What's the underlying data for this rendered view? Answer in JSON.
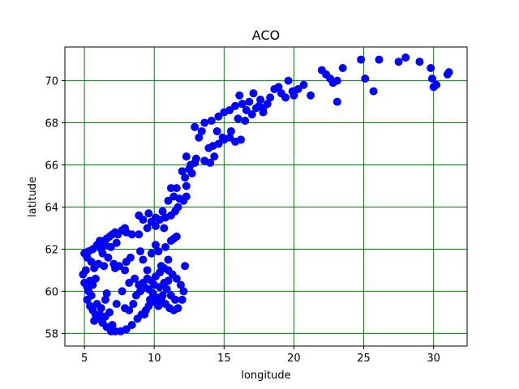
{
  "colors": {
    "grid": "#008000",
    "points": "#0000ff",
    "frame": "#000000",
    "background": "#ffffff"
  },
  "chart_data": {
    "type": "scatter",
    "title": "ACO",
    "xlabel": "longitude",
    "ylabel": "latitude",
    "xlim": [
      3.6,
      32.4
    ],
    "ylim": [
      57.4,
      71.6
    ],
    "xticks": [
      5,
      10,
      15,
      20,
      25,
      30
    ],
    "xtick_labels": [
      "5",
      "10",
      "15",
      "20",
      "25",
      "30"
    ],
    "yticks": [
      58,
      60,
      62,
      64,
      66,
      68,
      70
    ],
    "ytick_labels": [
      "58",
      "60",
      "62",
      "64",
      "66",
      "68",
      "70"
    ],
    "grid": true,
    "points": [
      [
        5.0,
        61.8
      ],
      [
        5.2,
        61.6
      ],
      [
        5.3,
        61.9
      ],
      [
        5.6,
        62.0
      ],
      [
        5.9,
        62.2
      ],
      [
        6.1,
        62.4
      ],
      [
        6.4,
        62.4
      ],
      [
        6.6,
        62.5
      ],
      [
        6.8,
        62.6
      ],
      [
        7.0,
        62.7
      ],
      [
        7.2,
        62.8
      ],
      [
        7.4,
        62.7
      ],
      [
        7.7,
        62.9
      ],
      [
        7.9,
        63.0
      ],
      [
        8.0,
        62.8
      ],
      [
        8.4,
        62.7
      ],
      [
        8.9,
        62.7
      ],
      [
        6.2,
        62.0
      ],
      [
        6.5,
        62.2
      ],
      [
        6.9,
        62.1
      ],
      [
        7.3,
        62.3
      ],
      [
        5.5,
        61.4
      ],
      [
        5.7,
        61.1
      ],
      [
        6.0,
        61.3
      ],
      [
        6.4,
        61.2
      ],
      [
        6.7,
        61.6
      ],
      [
        7.1,
        61.3
      ],
      [
        7.5,
        61.2
      ],
      [
        8.0,
        61.4
      ],
      [
        8.3,
        61.6
      ],
      [
        7.9,
        61.0
      ],
      [
        7.2,
        61.1
      ],
      [
        5.1,
        61.0
      ],
      [
        4.9,
        60.8
      ],
      [
        5.0,
        60.4
      ],
      [
        5.2,
        60.2
      ],
      [
        5.4,
        60.5
      ],
      [
        5.6,
        60.3
      ],
      [
        5.8,
        60.6
      ],
      [
        5.3,
        60.0
      ],
      [
        5.5,
        59.8
      ],
      [
        5.2,
        59.6
      ],
      [
        5.4,
        59.3
      ],
      [
        5.6,
        59.1
      ],
      [
        5.8,
        58.9
      ],
      [
        6.0,
        58.7
      ],
      [
        6.3,
        58.5
      ],
      [
        6.6,
        58.3
      ],
      [
        6.9,
        58.1
      ],
      [
        7.2,
        58.1
      ],
      [
        7.6,
        58.1
      ],
      [
        8.0,
        58.2
      ],
      [
        8.4,
        58.4
      ],
      [
        8.8,
        58.7
      ],
      [
        9.1,
        58.9
      ],
      [
        9.4,
        59.1
      ],
      [
        9.6,
        59.3
      ],
      [
        5.9,
        59.4
      ],
      [
        6.2,
        59.2
      ],
      [
        6.5,
        59.6
      ],
      [
        5.7,
        58.6
      ],
      [
        6.1,
        58.9
      ],
      [
        6.5,
        58.8
      ],
      [
        6.8,
        59.0
      ],
      [
        7.3,
        59.4
      ],
      [
        7.0,
        58.4
      ],
      [
        7.9,
        59.2
      ],
      [
        8.2,
        59.1
      ],
      [
        8.5,
        59.4
      ],
      [
        8.7,
        59.8
      ],
      [
        9.0,
        60.0
      ],
      [
        9.3,
        60.2
      ],
      [
        9.6,
        60.1
      ],
      [
        9.9,
        59.9
      ],
      [
        10.2,
        59.7
      ],
      [
        10.5,
        59.6
      ],
      [
        10.8,
        59.4
      ],
      [
        11.1,
        59.2
      ],
      [
        11.4,
        59.1
      ],
      [
        11.7,
        59.2
      ],
      [
        12.0,
        59.6
      ],
      [
        12.1,
        60.0
      ],
      [
        11.9,
        60.3
      ],
      [
        11.6,
        60.6
      ],
      [
        11.3,
        60.8
      ],
      [
        11.0,
        61.0
      ],
      [
        10.7,
        61.1
      ],
      [
        10.4,
        60.9
      ],
      [
        10.1,
        60.7
      ],
      [
        9.8,
        60.5
      ],
      [
        9.5,
        60.6
      ],
      [
        9.2,
        60.4
      ],
      [
        8.9,
        60.3
      ],
      [
        8.6,
        60.6
      ],
      [
        10.0,
        59.5
      ],
      [
        10.3,
        59.3
      ],
      [
        10.6,
        59.8
      ],
      [
        10.9,
        60.1
      ],
      [
        11.2,
        59.8
      ],
      [
        11.5,
        59.6
      ],
      [
        10.4,
        60.2
      ],
      [
        10.7,
        60.4
      ],
      [
        11.0,
        60.5
      ],
      [
        9.7,
        59.6
      ],
      [
        10.0,
        60.3
      ],
      [
        12.2,
        61.2
      ],
      [
        11.0,
        61.5
      ],
      [
        10.5,
        61.2
      ],
      [
        9.5,
        61.0
      ],
      [
        9.2,
        61.5
      ],
      [
        9.8,
        61.8
      ],
      [
        10.3,
        61.9
      ],
      [
        10.8,
        62.1
      ],
      [
        11.2,
        62.4
      ],
      [
        11.6,
        62.6
      ],
      [
        9.0,
        61.9
      ],
      [
        10.1,
        62.2
      ],
      [
        11.4,
        62.5
      ],
      [
        9.5,
        63.0
      ],
      [
        9.8,
        63.3
      ],
      [
        10.1,
        63.5
      ],
      [
        10.4,
        63.4
      ],
      [
        10.8,
        63.5
      ],
      [
        11.2,
        63.6
      ],
      [
        11.5,
        63.8
      ],
      [
        9.2,
        63.4
      ],
      [
        8.9,
        63.6
      ],
      [
        9.6,
        63.7
      ],
      [
        10.1,
        63.1
      ],
      [
        10.6,
        63.8
      ],
      [
        11.0,
        64.3
      ],
      [
        11.4,
        64.5
      ],
      [
        11.8,
        64.4
      ],
      [
        12.1,
        64.3
      ],
      [
        12.3,
        64.5
      ],
      [
        11.2,
        64.9
      ],
      [
        11.6,
        64.9
      ],
      [
        12.3,
        65.0
      ],
      [
        12.2,
        65.4
      ],
      [
        12.0,
        65.7
      ],
      [
        12.5,
        65.8
      ],
      [
        12.9,
        66.1
      ],
      [
        12.6,
        66.0
      ],
      [
        12.3,
        66.4
      ],
      [
        13.0,
        66.3
      ],
      [
        13.6,
        66.2
      ],
      [
        14.0,
        66.1
      ],
      [
        14.3,
        66.4
      ],
      [
        13.9,
        66.8
      ],
      [
        14.2,
        66.9
      ],
      [
        14.6,
        67.0
      ],
      [
        15.0,
        67.2
      ],
      [
        15.4,
        67.3
      ],
      [
        15.8,
        67.1
      ],
      [
        16.2,
        67.2
      ],
      [
        15.5,
        67.6
      ],
      [
        14.9,
        67.3
      ],
      [
        13.4,
        67.6
      ],
      [
        12.9,
        67.8
      ],
      [
        13.6,
        68.0
      ],
      [
        14.1,
        68.1
      ],
      [
        14.6,
        68.3
      ],
      [
        15.0,
        68.5
      ],
      [
        15.4,
        68.6
      ],
      [
        15.8,
        68.8
      ],
      [
        16.3,
        68.9
      ],
      [
        16.8,
        69.0
      ],
      [
        17.3,
        68.7
      ],
      [
        17.8,
        68.5
      ],
      [
        18.1,
        68.9
      ],
      [
        16.6,
        68.6
      ],
      [
        16.0,
        68.2
      ],
      [
        16.5,
        68.1
      ],
      [
        17.0,
        68.4
      ],
      [
        17.5,
        68.8
      ],
      [
        18.3,
        69.2
      ],
      [
        18.6,
        69.6
      ],
      [
        19.1,
        69.4
      ],
      [
        19.4,
        69.2
      ],
      [
        19.9,
        69.5
      ],
      [
        20.3,
        69.6
      ],
      [
        20.7,
        69.8
      ],
      [
        19.6,
        70.0
      ],
      [
        18.9,
        69.7
      ],
      [
        17.6,
        69.1
      ],
      [
        17.1,
        69.4
      ],
      [
        16.1,
        69.3
      ],
      [
        22.0,
        70.5
      ],
      [
        22.3,
        70.3
      ],
      [
        22.6,
        70.1
      ],
      [
        23.1,
        70.0
      ],
      [
        23.5,
        70.6
      ],
      [
        23.1,
        69.0
      ],
      [
        24.8,
        71.0
      ],
      [
        25.1,
        70.1
      ],
      [
        25.7,
        69.5
      ],
      [
        26.1,
        71.0
      ],
      [
        27.5,
        70.9
      ],
      [
        28.0,
        71.1
      ],
      [
        29.0,
        70.9
      ],
      [
        29.8,
        70.6
      ],
      [
        29.9,
        70.1
      ],
      [
        30.0,
        69.7
      ],
      [
        30.2,
        69.8
      ],
      [
        31.0,
        70.3
      ],
      [
        31.1,
        70.4
      ],
      [
        21.2,
        69.3
      ],
      [
        20.0,
        69.3
      ],
      [
        22.8,
        69.9
      ],
      [
        13.2,
        67.3
      ],
      [
        14.5,
        67.6
      ],
      [
        17.8,
        68.7
      ],
      [
        12.7,
        65.6
      ],
      [
        11.7,
        64.0
      ],
      [
        10.7,
        63.0
      ],
      [
        6.3,
        61.8
      ],
      [
        6.6,
        59.9
      ],
      [
        7.7,
        60.0
      ],
      [
        8.2,
        60.4
      ],
      [
        9.3,
        58.9
      ]
    ]
  }
}
